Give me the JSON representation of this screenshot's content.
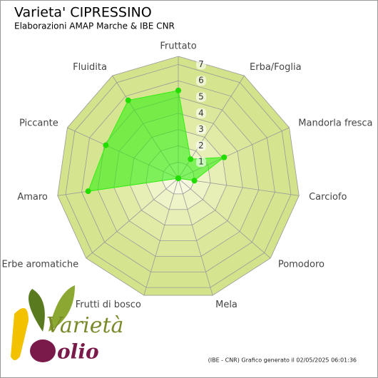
{
  "chart_data": {
    "type": "radar",
    "title": "Varieta' CIPRESSINO",
    "subtitle": "Elaborazioni AMAP Marche & IBE CNR",
    "footer": "(IBE - CNR) Grafico generato il 02/05/2025 06:01:36",
    "logo_text": [
      "Varietà",
      "olio"
    ],
    "categories": [
      "Fruttato",
      "Erba/Foglia",
      "Mandorla fresca",
      "Carciofo",
      "Pomodoro",
      "Mela",
      "Frutti di bosco",
      "Erbe aromatiche",
      "Amaro",
      "Piccante",
      "Fluidita"
    ],
    "values": [
      5.4,
      1.4,
      3.1,
      1.0,
      0,
      0,
      0,
      0,
      5.6,
      4.9,
      5.7
    ],
    "color": "#33ee11",
    "rlim": [
      0,
      7.5
    ],
    "rticks": [
      1,
      2,
      3,
      4,
      5,
      6,
      7
    ],
    "grid": true
  }
}
